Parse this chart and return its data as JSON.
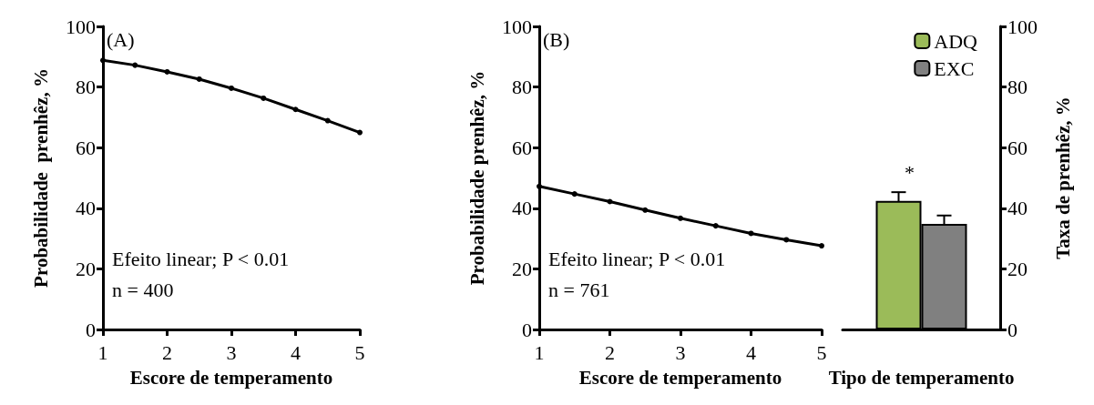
{
  "chart_data": [
    {
      "type": "line",
      "x": [
        1,
        1.5,
        2,
        2.5,
        3,
        3.5,
        4,
        4.5,
        5
      ],
      "xlim": [
        1,
        5
      ],
      "xticks": [
        1,
        2,
        3,
        4,
        5
      ],
      "ylim": [
        0,
        100
      ],
      "yticks": [
        0,
        20,
        40,
        60,
        80,
        100
      ],
      "xlabel": "Escore de temperamento",
      "ylabel": "Probabilidade  prenhêz, %",
      "marker": "circle",
      "grid": false,
      "legend": false,
      "series": [
        {
          "color": "#000000",
          "values": [
            88.8,
            87.2,
            85.0,
            82.6,
            79.6,
            76.3,
            72.6,
            68.9,
            65.0
          ]
        }
      ],
      "annotations": [
        "(A)",
        "Efeito linear; P < 0.01",
        "n = 400"
      ]
    },
    {
      "type": "line",
      "x": [
        1,
        1.5,
        2,
        2.5,
        3,
        3.5,
        4,
        4.5,
        5
      ],
      "xlim": [
        1,
        5
      ],
      "xticks": [
        1,
        2,
        3,
        4,
        5
      ],
      "ylim": [
        0,
        100
      ],
      "yticks": [
        0,
        20,
        40,
        60,
        80,
        100
      ],
      "xlabel": "Escore de temperamento",
      "ylabel": "Probabilidade prenhêz, %",
      "marker": "circle",
      "grid": false,
      "legend": false,
      "series": [
        {
          "color": "#000000",
          "values": [
            47.2,
            44.7,
            42.2,
            39.4,
            36.7,
            34.2,
            31.7,
            29.6,
            27.6
          ]
        }
      ],
      "annotations": [
        "(B)",
        "Efeito linear; P < 0.01",
        "n = 761"
      ]
    },
    {
      "type": "bar",
      "categories": [
        null
      ],
      "ylim": [
        0,
        100
      ],
      "yticks": [
        0,
        20,
        40,
        60,
        80,
        100
      ],
      "xlabel": "Tipo de temperamento",
      "ylabel": "Taxa de prenhêz, %",
      "grid": false,
      "legend": "top right",
      "series": [
        {
          "name": "ADQ",
          "color": "#9bbb59",
          "values": [
            42.4
          ],
          "errors": [
            2.9
          ]
        },
        {
          "name": "EXC",
          "color": "#808080",
          "values": [
            34.8
          ],
          "errors": [
            2.8
          ]
        }
      ],
      "annotations": [
        "*"
      ]
    }
  ]
}
